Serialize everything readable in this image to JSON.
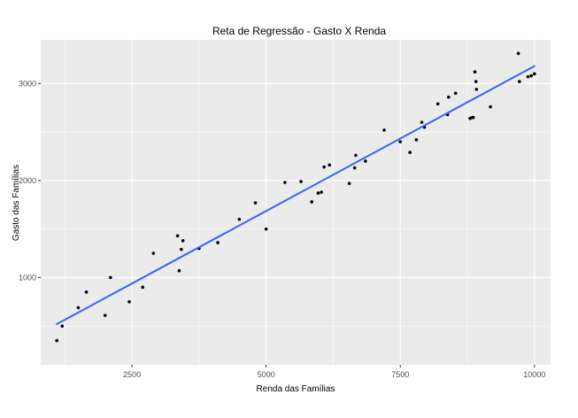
{
  "chart_data": {
    "type": "scatter",
    "title": "Reta de Regressão - Gasto X Renda",
    "xlabel": "Renda das Famílias",
    "ylabel": "Gasto das Famílias",
    "xlim": [
      800,
      10300
    ],
    "ylim": [
      100,
      3450
    ],
    "x_ticks": [
      2500,
      5000,
      7500,
      10000
    ],
    "y_ticks": [
      1000,
      2000,
      3000
    ],
    "x_tick_labels": [
      "2500",
      "5000",
      "7500",
      "10000"
    ],
    "y_tick_labels": [
      "1000",
      "2000",
      "3000"
    ],
    "grid": true,
    "colors": {
      "panel": "#ebebeb",
      "grid": "#ffffff",
      "points": "#000000",
      "line": "#3366ff"
    },
    "series": [
      {
        "type": "scatter",
        "x": [
          1100,
          1200,
          1500,
          1650,
          2000,
          2100,
          2450,
          2700,
          2900,
          3350,
          3380,
          3420,
          3450,
          3750,
          4100,
          4500,
          4800,
          5000,
          5350,
          5650,
          5850,
          5970,
          6030,
          6080,
          6180,
          6550,
          6650,
          6670,
          6850,
          7200,
          7500,
          7680,
          7800,
          7900,
          7950,
          8200,
          8380,
          8400,
          8530,
          8800,
          8840,
          8860,
          8890,
          8910,
          8920,
          9180,
          9700,
          9720,
          9880,
          9940,
          10000
        ],
        "y": [
          350,
          500,
          690,
          850,
          610,
          1000,
          750,
          900,
          1250,
          1430,
          1070,
          1290,
          1380,
          1300,
          1360,
          1600,
          1770,
          1500,
          1980,
          1990,
          1780,
          1870,
          1880,
          2140,
          2160,
          1970,
          2130,
          2260,
          2200,
          2520,
          2400,
          2290,
          2420,
          2600,
          2550,
          2790,
          2680,
          2860,
          2900,
          2640,
          2650,
          2650,
          3120,
          3020,
          2940,
          2760,
          3310,
          3020,
          3070,
          3080,
          3100
        ]
      },
      {
        "type": "line",
        "x": [
          1100,
          10000
        ],
        "y": [
          520,
          3180
        ]
      }
    ]
  }
}
